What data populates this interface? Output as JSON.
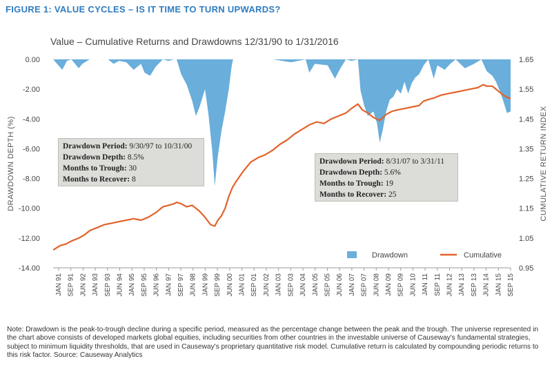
{
  "figure_title": "FIGURE 1: VALUE CYCLES – IS IT TIME TO TURN UPWARDS?",
  "callout_left": {
    "line1_label": "Drawdown Period:",
    "line1_value": "9/30/97 to 10/31/00",
    "line2_label": "Drawdown Depth:",
    "line2_value": "8.5%",
    "line3_label": "Months to Trough:",
    "line3_value": "30",
    "line4_label": "Months to Recover:",
    "line4_value": "8"
  },
  "callout_right": {
    "line1_label": "Drawdown Period:",
    "line1_value": "8/31/07 to 3/31/11",
    "line2_label": "Drawdown Depth:",
    "line2_value": "5.6%",
    "line3_label": "Months to Trough:",
    "line3_value": "19",
    "line4_label": "Months to Recover:",
    "line4_value": "25"
  },
  "note": "Note: Drawdown is the peak-to-trough decline during a specific period, measured as the percentage change between the peak and the trough. The universe represented in the chart above consists of developed markets global equities, including securities from other countries in the investable universe of Causeway's fundamental strategies, subject to minimum liquidity thresholds, that are used in Causeway's proprietary quantitative risk model. Cumulative return is calculated by compounding periodic returns to this risk factor. Source: Causeway Analytics",
  "colors": {
    "drawdown": "#6aaedb",
    "cumulative": "#e2622a",
    "title": "#2f7cc0",
    "callout_bg": "#dcdcd8"
  },
  "chart_data": {
    "type": "area",
    "title": "Value – Cumulative Returns and Drawdowns 12/31/90 to 1/31/2016",
    "ylabel_left": "DRAWDOWN DEPTH (%)",
    "ylabel_right": "CUMULATIVE RETURN INDEX",
    "y_left_ticks": [
      "0.00",
      "-2.00",
      "-4.00",
      "-6.00",
      "-8.00",
      "-10.00",
      "-12.00",
      "-14.00"
    ],
    "y_left_range": [
      -14,
      0
    ],
    "y_right_ticks": [
      "1.65",
      "1.55",
      "1.45",
      "1.35",
      "1.25",
      "1.15",
      "1.05",
      "0.95"
    ],
    "y_right_range": [
      0.95,
      1.65
    ],
    "x_ticks": [
      "JAN 91",
      "SEP 91",
      "JUN 92",
      "JAN 93",
      "SEP 93",
      "JUN 94",
      "JAN 95",
      "SEP 95",
      "JUN 96",
      "JAN 97",
      "SEP 97",
      "JUN 98",
      "JAN 99",
      "SEP 99",
      "JUN 00",
      "JAN 01",
      "SEP 01",
      "JUN 02",
      "JAN 03",
      "SEP 03",
      "JUN 04",
      "JAN 05",
      "SEP 05",
      "JUN 06",
      "JAN 07",
      "SEP 07",
      "JUN 08",
      "JAN 09",
      "SEP 09",
      "JUN 10",
      "JAN 11",
      "SEP 11",
      "JUN 12",
      "JAN 13",
      "SEP 13",
      "JUN 14",
      "JAN 15",
      "SEP 15"
    ],
    "x_range": [
      1991.0,
      2016.0
    ],
    "legend": [
      "Drawdown",
      "Cumulative"
    ],
    "legend_position": "bottom-right",
    "series": [
      {
        "name": "Drawdown",
        "axis": "left",
        "x": [
          1991.0,
          1991.5,
          1991.75,
          1992.0,
          1992.4,
          1992.6,
          1993.0,
          1993.5,
          1994.0,
          1994.3,
          1994.6,
          1995.0,
          1995.4,
          1995.8,
          1996.0,
          1996.3,
          1996.6,
          1997.0,
          1997.3,
          1997.6,
          1997.75,
          1998.0,
          1998.3,
          1998.6,
          1998.8,
          1999.0,
          1999.3,
          1999.5,
          1999.7,
          1999.83,
          2000.0,
          2000.2,
          2000.4,
          2000.6,
          2000.75,
          2000.83,
          2001.0,
          2002.0,
          2003.0,
          2004.0,
          2004.8,
          2005.0,
          2005.3,
          2006.0,
          2006.4,
          2006.7,
          2007.0,
          2007.3,
          2007.66,
          2007.8,
          2008.0,
          2008.2,
          2008.5,
          2008.7,
          2008.85,
          2009.0,
          2009.2,
          2009.4,
          2009.6,
          2009.8,
          2010.0,
          2010.2,
          2010.4,
          2010.6,
          2010.8,
          2011.0,
          2011.25,
          2011.5,
          2011.8,
          2012.0,
          2012.4,
          2012.7,
          2013.0,
          2013.5,
          2014.0,
          2014.4,
          2014.7,
          2015.0,
          2015.2,
          2015.4,
          2015.6,
          2015.8,
          2016.0
        ],
        "values": [
          0,
          -0.7,
          -0.1,
          0,
          -0.6,
          -0.3,
          0,
          0,
          0,
          -0.3,
          -0.1,
          -0.2,
          -0.7,
          -0.3,
          -0.9,
          -1.1,
          -0.5,
          0,
          -0.1,
          0,
          0,
          -1.0,
          -1.7,
          -2.8,
          -3.8,
          -3.2,
          -2.0,
          -3.8,
          -6.2,
          -8.5,
          -6.5,
          -4.8,
          -3.5,
          -2.0,
          -0.5,
          0,
          0,
          0,
          0,
          -0.2,
          0,
          -0.9,
          -0.3,
          -0.4,
          -1.3,
          -0.6,
          0,
          -0.1,
          0,
          -2.1,
          -3.1,
          -3.8,
          -3.5,
          -4.3,
          -5.6,
          -4.8,
          -3.5,
          -2.7,
          -2.5,
          -2.0,
          -2.3,
          -1.5,
          -2.3,
          -1.6,
          -1.2,
          -1.0,
          -0.4,
          0,
          -1.3,
          -0.4,
          -0.7,
          -0.3,
          0,
          -0.6,
          -0.3,
          0,
          -0.8,
          -1.1,
          -1.5,
          -2.1,
          -2.8,
          -3.6,
          -3.5
        ]
      },
      {
        "name": "Cumulative",
        "axis": "right",
        "x": [
          1991.0,
          1991.4,
          1991.7,
          1992.0,
          1992.4,
          1992.7,
          1993.0,
          1993.4,
          1993.8,
          1994.2,
          1994.6,
          1995.0,
          1995.4,
          1995.8,
          1996.2,
          1996.6,
          1997.0,
          1997.3,
          1997.6,
          1997.75,
          1998.0,
          1998.3,
          1998.6,
          1998.8,
          1999.0,
          1999.3,
          1999.6,
          1999.83,
          2000.0,
          2000.2,
          2000.4,
          2000.6,
          2000.8,
          2001.0,
          2001.4,
          2001.8,
          2002.2,
          2002.6,
          2003.0,
          2003.4,
          2003.8,
          2004.2,
          2004.6,
          2005.0,
          2005.4,
          2005.8,
          2006.2,
          2006.6,
          2007.0,
          2007.3,
          2007.66,
          2007.9,
          2008.2,
          2008.5,
          2008.85,
          2009.2,
          2009.5,
          2009.8,
          2010.2,
          2010.6,
          2011.0,
          2011.25,
          2011.5,
          2011.8,
          2012.2,
          2012.6,
          2013.0,
          2013.4,
          2013.8,
          2014.2,
          2014.5,
          2014.7,
          2015.0,
          2015.3,
          2015.6,
          2015.9,
          2016.0
        ],
        "values": [
          1.01,
          1.025,
          1.03,
          1.04,
          1.05,
          1.06,
          1.075,
          1.085,
          1.095,
          1.1,
          1.105,
          1.11,
          1.115,
          1.11,
          1.12,
          1.135,
          1.155,
          1.16,
          1.165,
          1.17,
          1.165,
          1.155,
          1.16,
          1.15,
          1.14,
          1.12,
          1.095,
          1.09,
          1.11,
          1.125,
          1.15,
          1.19,
          1.22,
          1.24,
          1.275,
          1.305,
          1.32,
          1.33,
          1.345,
          1.365,
          1.38,
          1.4,
          1.415,
          1.43,
          1.44,
          1.435,
          1.45,
          1.46,
          1.47,
          1.485,
          1.5,
          1.48,
          1.47,
          1.455,
          1.445,
          1.465,
          1.475,
          1.48,
          1.485,
          1.49,
          1.495,
          1.51,
          1.515,
          1.52,
          1.53,
          1.535,
          1.54,
          1.545,
          1.55,
          1.555,
          1.565,
          1.56,
          1.56,
          1.545,
          1.53,
          1.52,
          1.52
        ]
      }
    ]
  }
}
